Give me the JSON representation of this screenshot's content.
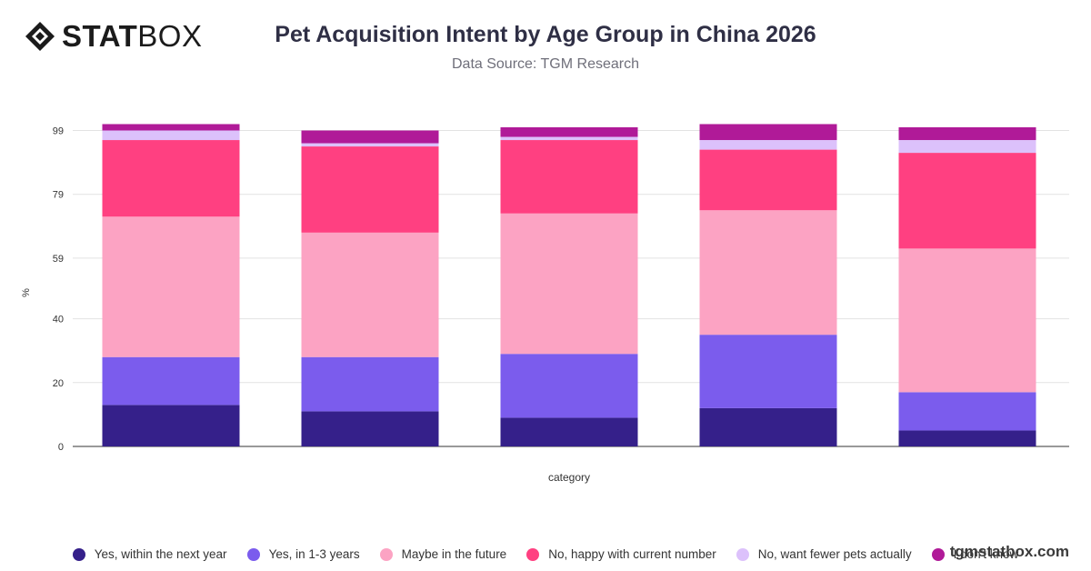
{
  "brand": {
    "stat": "STAT",
    "box": "BOX"
  },
  "watermark": "tgmstatbox.com",
  "chart_data": {
    "type": "bar",
    "stacked": true,
    "title": "Pet Acquisition Intent by Age Group in China 2026",
    "subtitle": "Data Source: TGM Research",
    "xlabel": "category",
    "ylabel": "%",
    "ylim": [
      0,
      100
    ],
    "yticks": [
      0,
      20,
      40,
      59,
      79,
      99
    ],
    "grid": true,
    "legend_position": "bottom",
    "categories": [
      "",
      "",
      "",
      "",
      ""
    ],
    "series": [
      {
        "name": "Yes, within the next year",
        "color": "#35208a",
        "values": [
          13,
          11,
          9,
          12,
          5
        ]
      },
      {
        "name": "Yes, in 1-3 years",
        "color": "#7b5ced",
        "values": [
          15,
          17,
          20,
          23,
          12
        ]
      },
      {
        "name": "Maybe in the future",
        "color": "#fca3c3",
        "values": [
          44,
          39,
          44,
          39,
          45
        ]
      },
      {
        "name": "No, happy with current number",
        "color": "#ff4081",
        "values": [
          24,
          27,
          23,
          19,
          30
        ]
      },
      {
        "name": "No, want fewer pets actually",
        "color": "#dcc1fb",
        "values": [
          3,
          1,
          1,
          3,
          4
        ]
      },
      {
        "name": "I don't know",
        "color": "#b01a98",
        "values": [
          2,
          4,
          3,
          5,
          4
        ]
      }
    ]
  }
}
